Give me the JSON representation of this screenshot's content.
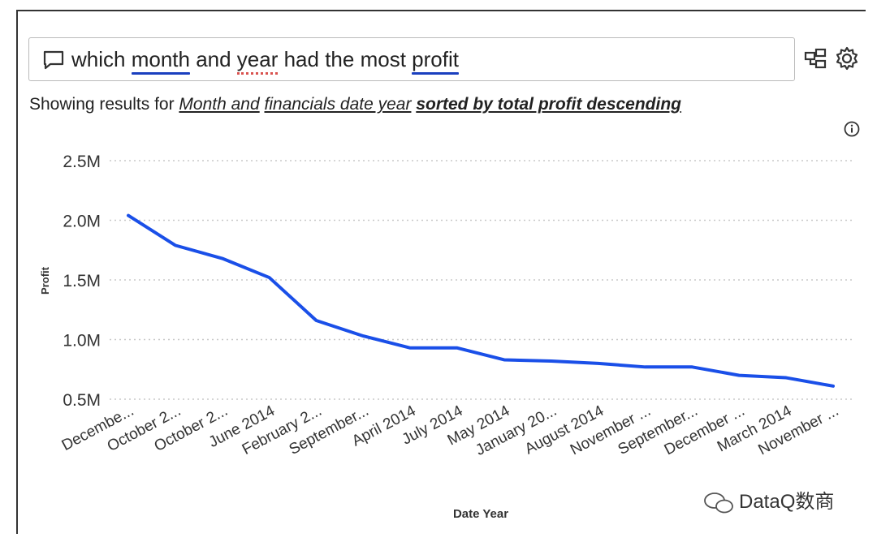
{
  "query": {
    "parts": [
      {
        "text": "which ",
        "mark": "none"
      },
      {
        "text": "month",
        "mark": "underline"
      },
      {
        "text": " and ",
        "mark": "none"
      },
      {
        "text": "year",
        "mark": "dotted"
      },
      {
        "text": " had the most ",
        "mark": "none"
      },
      {
        "text": "profit",
        "mark": "underline"
      }
    ],
    "underline_color": "#1a3fbf",
    "dotted_color": "#d9534f"
  },
  "results": {
    "prefix": "Showing results for ",
    "link1": "Month and",
    "space": " ",
    "link2": "financials date year",
    "space2": " ",
    "sorted": "sorted by total profit descending"
  },
  "icons": {
    "qa": "speech-bubble-icon",
    "share": "share-visual-icon",
    "settings": "gear-icon",
    "info": "info-icon",
    "watermark": "wechat-icon"
  },
  "watermark": {
    "text": "DataQ数商"
  },
  "chart_data": {
    "type": "line",
    "xlabel": "Date Year",
    "ylabel": "Profit",
    "categories": [
      "Decembe...",
      "October 2...",
      "October 2...",
      "June 2014",
      "February 2...",
      "September...",
      "April 2014",
      "July 2014",
      "May 2014",
      "January 20...",
      "August 2014",
      "November ...",
      "September...",
      "December ...",
      "March 2014",
      "November ..."
    ],
    "values": [
      2040000,
      1790000,
      1680000,
      1520000,
      1160000,
      1030000,
      930000,
      930000,
      830000,
      820000,
      800000,
      770000,
      770000,
      700000,
      680000,
      610000
    ],
    "yticks": [
      0.5,
      1.0,
      1.5,
      2.0,
      2.5
    ],
    "ytick_labels": [
      "0.5M",
      "1.0M",
      "1.5M",
      "2.0M",
      "2.5M"
    ],
    "ylim": [
      500000,
      2500000
    ],
    "line_color": "#1a4fe8",
    "grid": "dotted horizontal"
  }
}
